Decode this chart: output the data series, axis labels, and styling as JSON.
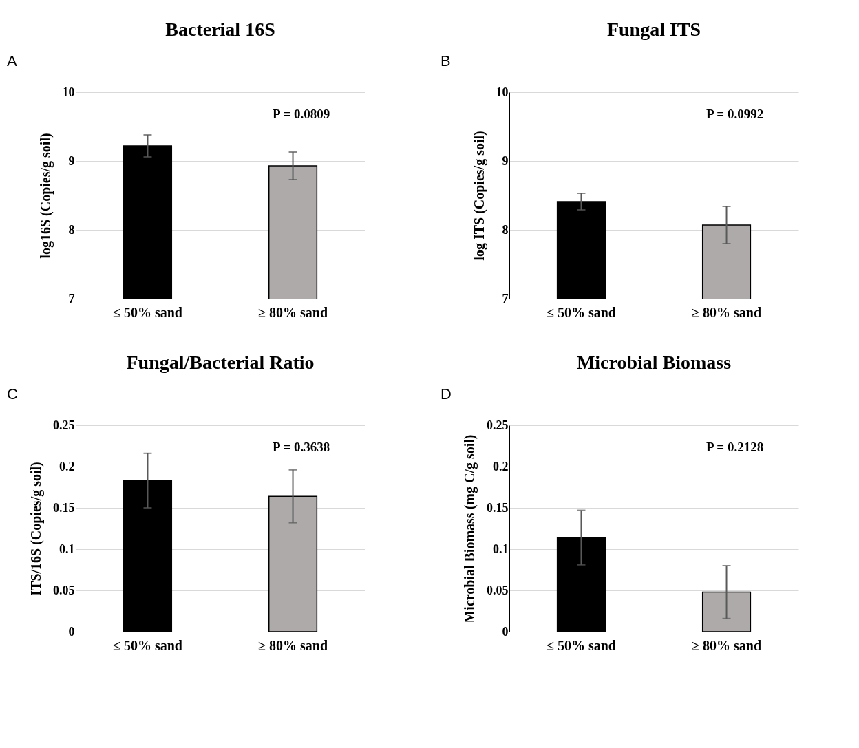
{
  "chart_data": [
    {
      "type": "bar",
      "title": "Bacterial 16S",
      "ylabel": "log16S (Copies/g soil)",
      "categories": [
        "≤ 50% sand",
        "≥ 80% sand"
      ],
      "values": [
        9.22,
        8.93
      ],
      "colors": [
        "#000000",
        "#aeaaaa"
      ],
      "errors": [
        0.16,
        0.2
      ],
      "ylim": [
        7,
        10
      ],
      "yticks": [
        7,
        8,
        9,
        10
      ],
      "grid": "y",
      "annotations": [
        "A",
        "P = 0.0809"
      ]
    },
    {
      "type": "bar",
      "title": "Fungal ITS",
      "ylabel": "log ITS (Copies/g soil)",
      "categories": [
        "≤ 50% sand",
        "≥ 80% sand"
      ],
      "values": [
        8.41,
        8.07
      ],
      "colors": [
        "#000000",
        "#aeaaaa"
      ],
      "errors": [
        0.12,
        0.27
      ],
      "ylim": [
        7,
        10
      ],
      "yticks": [
        7,
        8,
        9,
        10
      ],
      "grid": "y",
      "annotations": [
        "B",
        "P = 0.0992"
      ]
    },
    {
      "type": "bar",
      "title": "Fungal/Bacterial Ratio",
      "ylabel": "ITS/16S (Copies/g soil)",
      "categories": [
        "≤ 50% sand",
        "≥ 80% sand"
      ],
      "values": [
        0.183,
        0.164
      ],
      "colors": [
        "#000000",
        "#aeaaaa"
      ],
      "errors": [
        0.033,
        0.032
      ],
      "ylim": [
        0,
        0.25
      ],
      "yticks": [
        0,
        0.05,
        0.1,
        0.15,
        0.2,
        0.25
      ],
      "grid": "y",
      "annotations": [
        "C",
        "P = 0.3638"
      ]
    },
    {
      "type": "bar",
      "title": "Microbial Biomass",
      "ylabel": "Microbial Biomass (mg C/g  soil)",
      "categories": [
        "≤ 50% sand",
        "≥ 80% sand"
      ],
      "values": [
        0.114,
        0.048
      ],
      "colors": [
        "#000000",
        "#aeaaaa"
      ],
      "errors": [
        0.033,
        0.032
      ],
      "ylim": [
        0,
        0.25
      ],
      "yticks": [
        0,
        0.05,
        0.1,
        0.15,
        0.2,
        0.25
      ],
      "grid": "y",
      "annotations": [
        "D",
        "P = 0.2128"
      ]
    }
  ]
}
